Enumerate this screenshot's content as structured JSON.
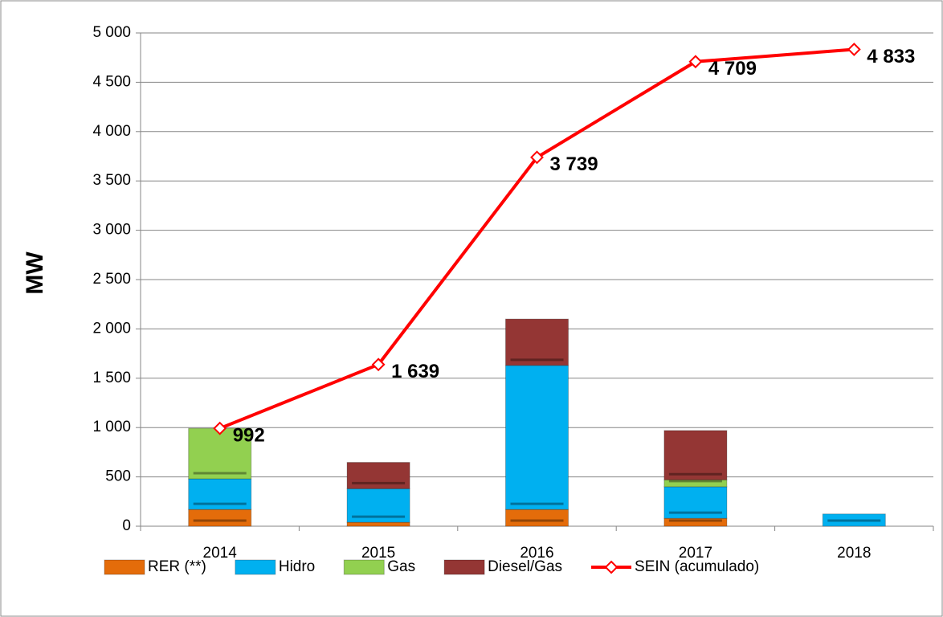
{
  "chart_data": {
    "type": "stacked_bar_line",
    "y_axis_label": "MW",
    "categories": [
      "2014",
      "2015",
      "2016",
      "2017",
      "2018"
    ],
    "series": [
      {
        "name": "RER (**)",
        "color": "#e46c0a",
        "values": [
          170,
          40,
          170,
          80,
          0
        ]
      },
      {
        "name": "Hidro",
        "color": "#00b0f0",
        "values": [
          310,
          340,
          1460,
          320,
          124
        ]
      },
      {
        "name": "Gas",
        "color": "#92d050",
        "values": [
          512,
          0,
          0,
          70,
          0
        ]
      },
      {
        "name": "Diesel/Gas",
        "color": "#943634",
        "values": [
          0,
          267,
          470,
          500,
          0
        ]
      },
      {
        "name": "SEIN (acumulado)",
        "color": "#ff0000",
        "type": "line",
        "values": [
          992,
          1639,
          3739,
          4709,
          4833
        ],
        "value_labels": [
          "992",
          "1 639",
          "3 739",
          "4 709",
          "4 833"
        ]
      }
    ],
    "ylim": [
      0,
      5000
    ],
    "yticks": [
      0,
      500,
      {
        "value": 1000,
        "label": "1 000"
      },
      {
        "value": 1500,
        "label": "1 500"
      },
      {
        "value": 2000,
        "label": "2 000"
      },
      {
        "value": 2500,
        "label": "2 500"
      },
      {
        "value": 3000,
        "label": "3 000"
      },
      {
        "value": 3500,
        "label": "3 500"
      },
      {
        "value": 4000,
        "label": "4 000"
      },
      {
        "value": 4500,
        "label": "4 500"
      },
      {
        "value": 5000,
        "label": "5 000"
      }
    ],
    "grid": true,
    "legend": "bottom"
  }
}
